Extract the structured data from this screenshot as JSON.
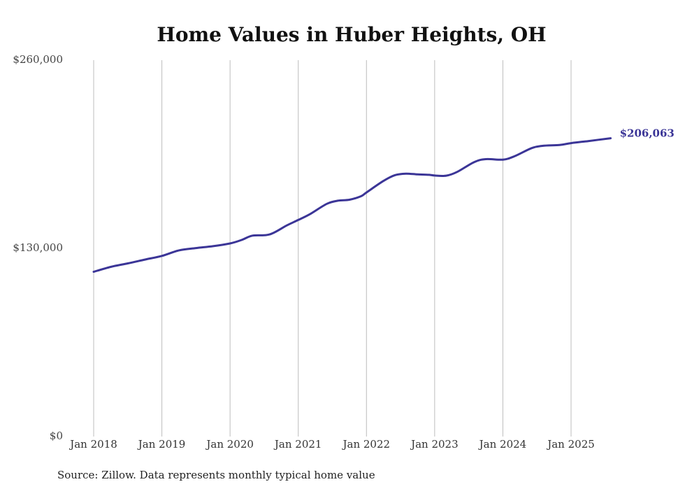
{
  "chart_data": {
    "type": "line",
    "title": "Home Values in Huber Heights, OH",
    "source": "Source: Zillow. Data represents monthly typical home value",
    "xlabel": "",
    "ylabel": "",
    "ylim": [
      0,
      260000
    ],
    "xlim": [
      2017.97,
      2025.67
    ],
    "y_ticks": [
      {
        "value": 0,
        "label": "$0"
      },
      {
        "value": 130000,
        "label": "$130,000"
      },
      {
        "value": 260000,
        "label": "$260,000"
      }
    ],
    "x_ticks": [
      {
        "value": 2018,
        "label": "Jan 2018"
      },
      {
        "value": 2019,
        "label": "Jan 2019"
      },
      {
        "value": 2020,
        "label": "Jan 2020"
      },
      {
        "value": 2021,
        "label": "Jan 2021"
      },
      {
        "value": 2022,
        "label": "Jan 2022"
      },
      {
        "value": 2023,
        "label": "Jan 2023"
      },
      {
        "value": 2024,
        "label": "Jan 2024"
      },
      {
        "value": 2025,
        "label": "Jan 2025"
      }
    ],
    "grid": {
      "vertical": true,
      "horizontal": false
    },
    "series": [
      {
        "name": "Typical home value",
        "color": "#3b3597",
        "end_label": "$206,063",
        "points": [
          [
            2018.0,
            113800
          ],
          [
            2018.25,
            117200
          ],
          [
            2018.5,
            119600
          ],
          [
            2018.75,
            122200
          ],
          [
            2019.0,
            124800
          ],
          [
            2019.25,
            128600
          ],
          [
            2019.5,
            130200
          ],
          [
            2019.75,
            131500
          ],
          [
            2020.0,
            133400
          ],
          [
            2020.17,
            135800
          ],
          [
            2020.33,
            138800
          ],
          [
            2020.58,
            139600
          ],
          [
            2020.83,
            145800
          ],
          [
            2021.0,
            149600
          ],
          [
            2021.17,
            153600
          ],
          [
            2021.42,
            160800
          ],
          [
            2021.58,
            162900
          ],
          [
            2021.75,
            163600
          ],
          [
            2021.92,
            166000
          ],
          [
            2022.0,
            168600
          ],
          [
            2022.25,
            176600
          ],
          [
            2022.42,
            180600
          ],
          [
            2022.58,
            181600
          ],
          [
            2022.75,
            181100
          ],
          [
            2022.92,
            180800
          ],
          [
            2023.0,
            180300
          ],
          [
            2023.17,
            180200
          ],
          [
            2023.33,
            182800
          ],
          [
            2023.58,
            189600
          ],
          [
            2023.75,
            191600
          ],
          [
            2024.0,
            191300
          ],
          [
            2024.17,
            193600
          ],
          [
            2024.42,
            199200
          ],
          [
            2024.58,
            200800
          ],
          [
            2024.83,
            201400
          ],
          [
            2025.0,
            202700
          ],
          [
            2025.25,
            204100
          ],
          [
            2025.58,
            206063
          ]
        ]
      }
    ]
  }
}
